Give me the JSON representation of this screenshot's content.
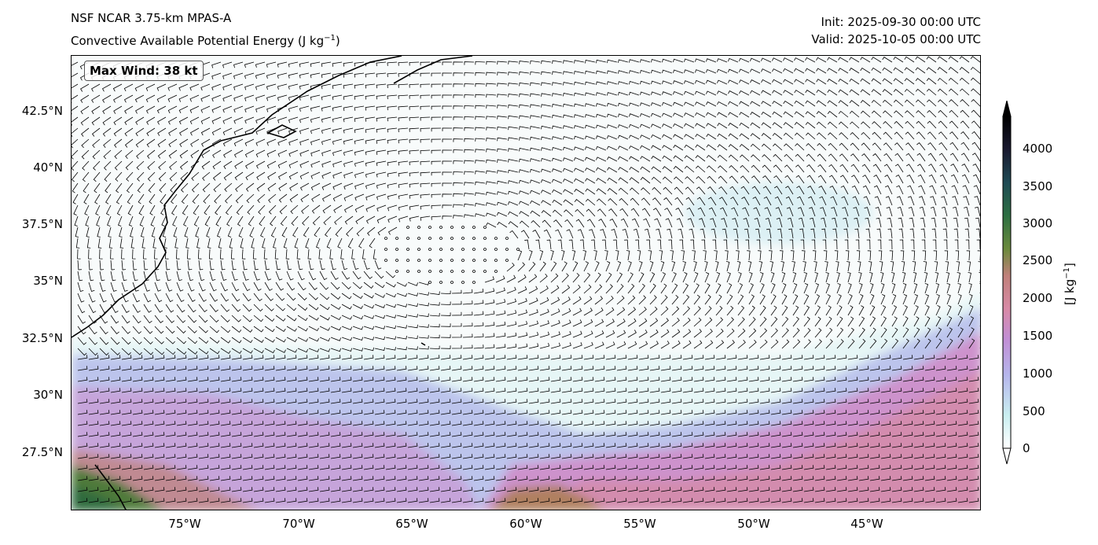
{
  "header": {
    "model": "NSF NCAR 3.75-km MPAS-A",
    "field": "Convective Available Potential Energy (J kg",
    "field_exp": "−1",
    "field_close": ")",
    "init": "Init: 2025-09-30 00:00 UTC",
    "valid": "Valid: 2025-10-05 00:00 UTC"
  },
  "map": {
    "max_wind": "Max Wind: 38 kt",
    "lat_ticks": [
      "42.5°N",
      "40°N",
      "37.5°N",
      "35°N",
      "32.5°N",
      "30°N",
      "27.5°N"
    ],
    "lon_ticks": [
      "75°W",
      "70°W",
      "65°W",
      "60°W",
      "55°W",
      "50°W",
      "45°W"
    ],
    "extent": {
      "lon_min": -80,
      "lon_max": -40,
      "lat_min": 25,
      "lat_max": 45
    }
  },
  "colorbar": {
    "ticks": [
      "4000",
      "3500",
      "3000",
      "2500",
      "2000",
      "1500",
      "1000",
      "500",
      "0"
    ],
    "label": "[J kg",
    "label_exp": "−1",
    "label_close": "]",
    "colors": [
      "#ffffff",
      "#c9eef0",
      "#b6b6ec",
      "#c28ed4",
      "#d88aa6",
      "#c0807a",
      "#6b8a3c",
      "#2d6f42",
      "#1f4b55",
      "#1a1a30",
      "#000000"
    ]
  }
}
